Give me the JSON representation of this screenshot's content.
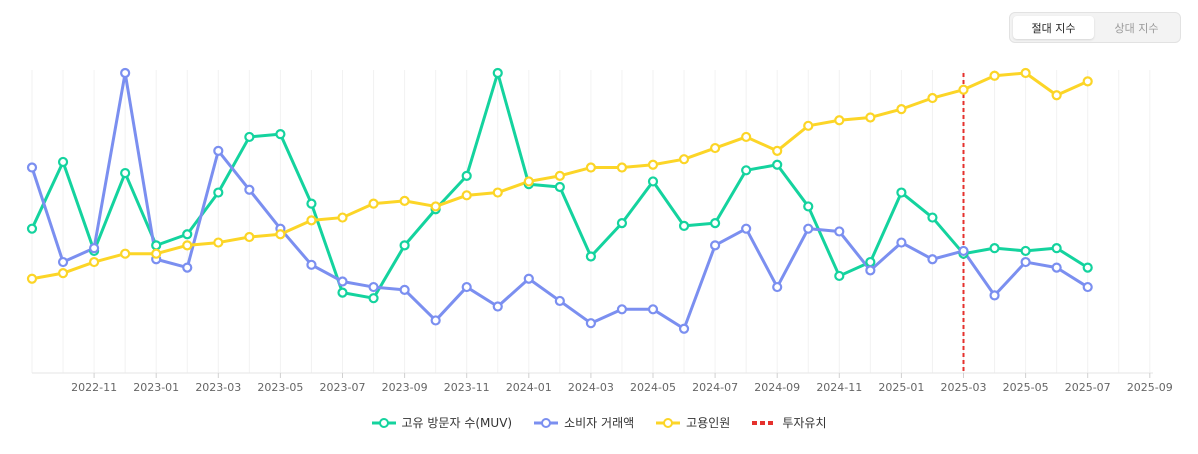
{
  "toggle": {
    "absolute_label": "절대 지수",
    "relative_label": "상대 지수",
    "active": "absolute"
  },
  "chart_data": {
    "type": "line",
    "title": "",
    "xlabel": "",
    "ylabel": "",
    "x_ticks": [
      "2022-11",
      "2023-01",
      "2023-03",
      "2023-05",
      "2023-07",
      "2023-09",
      "2023-11",
      "2024-01",
      "2024-03",
      "2024-05",
      "2024-07",
      "2024-09",
      "2024-11",
      "2025-01",
      "2025-03",
      "2025-05",
      "2025-07",
      "2025-09"
    ],
    "x": [
      "2022-09",
      "2022-10",
      "2022-11",
      "2022-12",
      "2023-01",
      "2023-02",
      "2023-03",
      "2023-04",
      "2023-05",
      "2023-06",
      "2023-07",
      "2023-08",
      "2023-09",
      "2023-10",
      "2023-11",
      "2023-12",
      "2024-01",
      "2024-02",
      "2024-03",
      "2024-04",
      "2024-05",
      "2024-06",
      "2024-07",
      "2024-08",
      "2024-09",
      "2024-10",
      "2024-11",
      "2024-12",
      "2025-01",
      "2025-02",
      "2025-03",
      "2025-04",
      "2025-05",
      "2025-06",
      "2025-07"
    ],
    "ylim": [
      0,
      100
    ],
    "grid": "vertical",
    "series": [
      {
        "name": "고유 방문자 수(MUV)",
        "color": "#14d39e",
        "values": [
          44,
          68,
          36,
          64,
          38,
          42,
          57,
          77,
          78,
          53,
          21,
          19,
          38,
          51,
          63,
          100,
          60,
          59,
          34,
          46,
          61,
          45,
          46,
          65,
          67,
          52,
          27,
          32,
          57,
          48,
          35,
          37,
          36,
          37,
          30
        ]
      },
      {
        "name": "소비자 거래액",
        "color": "#7b8ff0",
        "values": [
          66,
          32,
          37,
          100,
          33,
          30,
          72,
          58,
          44,
          31,
          25,
          23,
          22,
          11,
          23,
          16,
          26,
          18,
          10,
          15,
          15,
          8,
          38,
          44,
          23,
          44,
          43,
          29,
          39,
          33,
          36,
          20,
          32,
          30,
          23
        ]
      },
      {
        "name": "고용인원",
        "color": "#fcd527",
        "values": [
          26,
          28,
          32,
          35,
          35,
          38,
          39,
          41,
          42,
          47,
          48,
          53,
          54,
          52,
          56,
          57,
          61,
          63,
          66,
          66,
          67,
          69,
          73,
          77,
          72,
          81,
          83,
          84,
          87,
          91,
          94,
          99,
          100,
          92,
          97
        ]
      }
    ],
    "marker": {
      "name": "투자유치",
      "x": "2025-03",
      "color": "#e5312d",
      "style": "dashed"
    }
  }
}
